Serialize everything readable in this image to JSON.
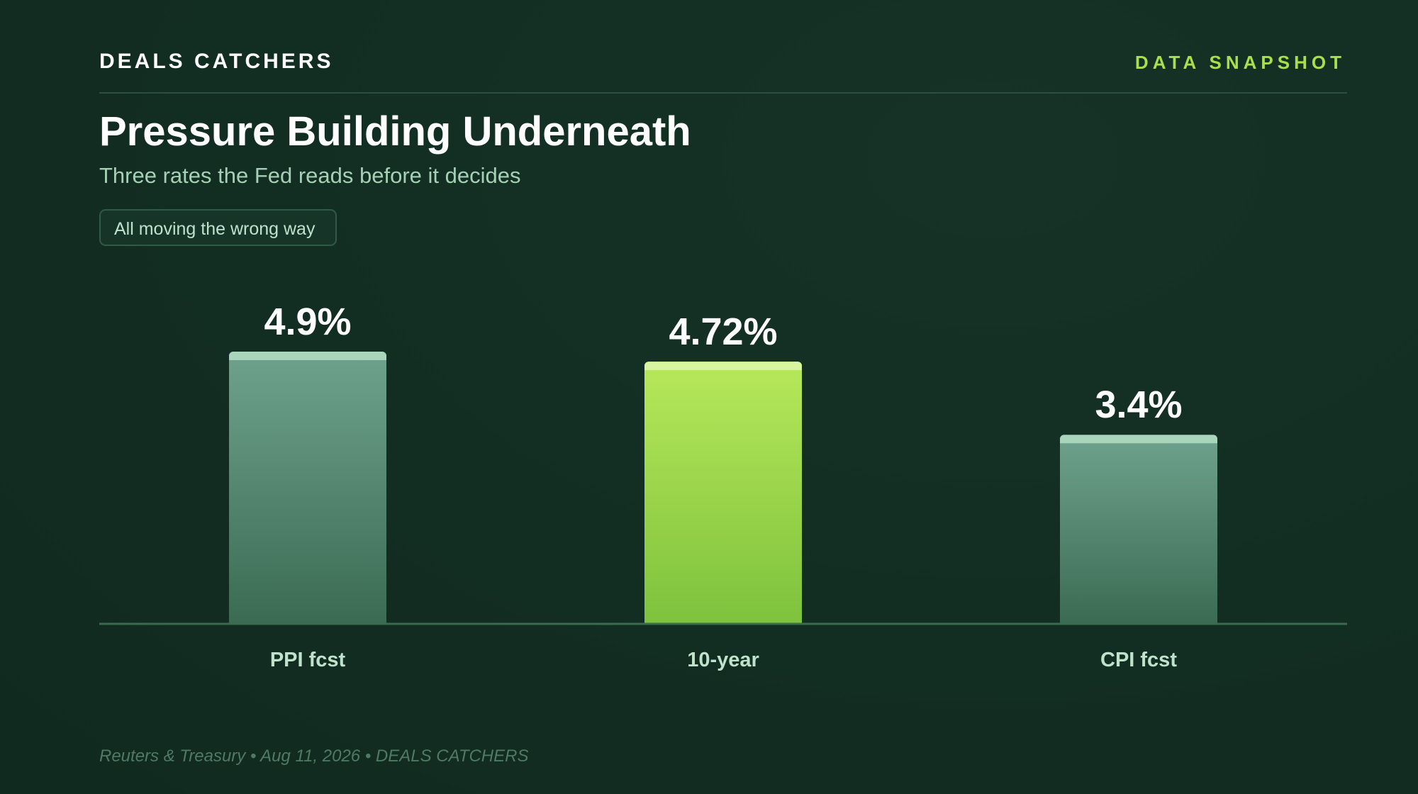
{
  "header": {
    "brand": "DEALS CATCHERS",
    "tag": "DATA SNAPSHOT"
  },
  "title": "Pressure Building Underneath",
  "subtitle": "Three rates the Fed reads before it decides",
  "pill": "All moving the wrong way",
  "footer": "Reuters & Treasury • Aug 11, 2026 • DEALS CATCHERS",
  "colors": {
    "background": "#122d22",
    "accent": "#a9e04a",
    "bar_default_top": "#6fa28e",
    "bar_default_bottom": "#3b6b52",
    "bar_default_cap": "#a8d5bb",
    "bar_highlight_top": "#b7e85a",
    "bar_highlight_bottom": "#7ec23d",
    "bar_highlight_cap": "#d8f5a0",
    "label": "#bfe2cb",
    "value": "#ffffff",
    "baseline": "#3a6a52"
  },
  "chart_data": {
    "type": "bar",
    "title": "Pressure Building Underneath",
    "categories": [
      "PPI fcst",
      "10-year",
      "CPI fcst"
    ],
    "values": [
      4.9,
      4.72,
      3.4
    ],
    "value_labels": [
      "4.9%",
      "4.72%",
      "3.4%"
    ],
    "highlight_index": 1,
    "ylim": [
      0,
      4.9
    ],
    "grid": false,
    "legend": "none"
  }
}
